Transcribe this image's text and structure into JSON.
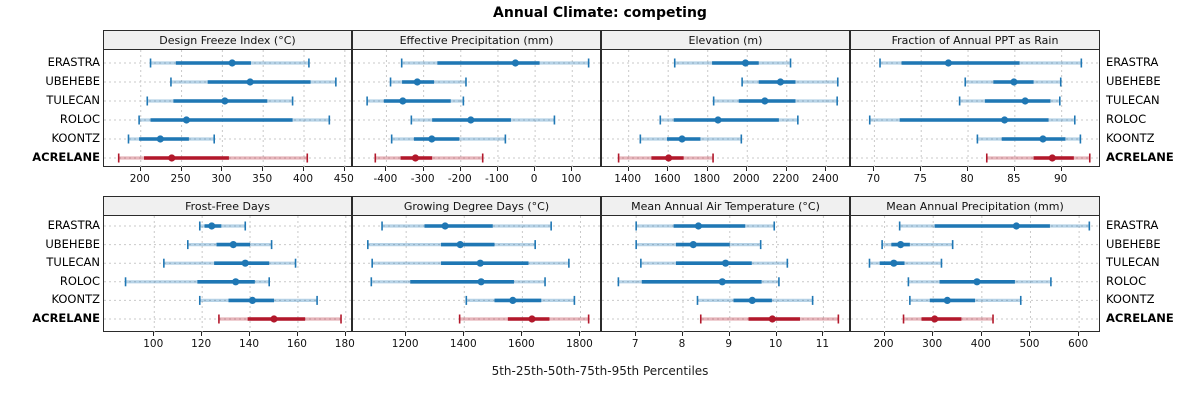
{
  "title": "Annual Climate: competing",
  "caption": "5th-25th-50th-75th-95th Percentiles",
  "sites": [
    "ERASTRA",
    "UBEHEBE",
    "TULECAN",
    "ROLOC",
    "KOONTZ",
    "ACRELANE"
  ],
  "highlight_site": "ACRELANE",
  "percentile_levels": [
    5,
    25,
    50,
    75,
    95
  ],
  "colors": {
    "series": "#1f77b4",
    "highlight": "#b2182b",
    "grid": "#c9c9c9",
    "strip_bg": "#f0f0f0",
    "border": "#2b2b2b"
  },
  "chart_data": {
    "type": "dot-whisker-percentile trellis",
    "layout_hint": "2 rows x 4 columns, shared site category axis, grid on, strip headers per panel",
    "rows": [
      "ERASTRA",
      "UBEHEBE",
      "TULECAN",
      "ROLOC",
      "KOONTZ",
      "ACRELANE"
    ],
    "value_order": "p5, p25, p50, p75, p95",
    "panels": [
      {
        "title": "Design Freeze Index (°C)",
        "xmin": 155,
        "xmax": 460,
        "ticks": [
          200,
          250,
          300,
          350,
          400,
          450
        ],
        "values": {
          "ERASTRA": [
            212,
            243,
            312,
            335,
            406
          ],
          "UBEHEBE": [
            237,
            282,
            334,
            408,
            439
          ],
          "TULECAN": [
            208,
            240,
            303,
            355,
            386
          ],
          "ROLOC": [
            198,
            212,
            256,
            386,
            431
          ],
          "KOONTZ": [
            185,
            198,
            224,
            259,
            290
          ],
          "ACRELANE": [
            173,
            204,
            238,
            308,
            404
          ]
        }
      },
      {
        "title": "Effective Precipitation (mm)",
        "xmin": -490,
        "xmax": 180,
        "ticks": [
          -400,
          -300,
          -200,
          -100,
          0,
          100
        ],
        "values": {
          "ERASTRA": [
            -359,
            -263,
            -53,
            12,
            144
          ],
          "UBEHEBE": [
            -389,
            -358,
            -317,
            -272,
            -186
          ],
          "TULECAN": [
            -452,
            -407,
            -356,
            -227,
            -193
          ],
          "ROLOC": [
            -333,
            -277,
            -173,
            -65,
            52
          ],
          "KOONTZ": [
            -386,
            -326,
            -278,
            -204,
            -80
          ],
          "ACRELANE": [
            -430,
            -362,
            -322,
            -277,
            -141
          ]
        }
      },
      {
        "title": "Elevation (m)",
        "xmin": 1265,
        "xmax": 2525,
        "ticks": [
          1400,
          1600,
          1800,
          2000,
          2200,
          2400
        ],
        "values": {
          "ERASTRA": [
            1633,
            1822,
            1991,
            2058,
            2219
          ],
          "UBEHEBE": [
            1974,
            2058,
            2168,
            2244,
            2458
          ],
          "TULECAN": [
            1830,
            1957,
            2089,
            2244,
            2455
          ],
          "ROLOC": [
            1560,
            1628,
            1852,
            2160,
            2256
          ],
          "KOONTZ": [
            1459,
            1594,
            1670,
            1763,
            1970
          ],
          "ACRELANE": [
            1349,
            1515,
            1602,
            1678,
            1827
          ]
        }
      },
      {
        "title": "Fraction of Annual PPT as Rain",
        "xmin": 67.5,
        "xmax": 94.2,
        "ticks": [
          70,
          75,
          80,
          85,
          90
        ],
        "values": {
          "ERASTRA": [
            70.6,
            72.9,
            77.9,
            85.5,
            92.1
          ],
          "UBEHEBE": [
            79.7,
            82.7,
            84.9,
            87.0,
            89.9
          ],
          "TULECAN": [
            79.1,
            81.8,
            86.1,
            88.8,
            89.8
          ],
          "ROLOC": [
            69.5,
            72.7,
            83.9,
            88.6,
            91.4
          ],
          "KOONTZ": [
            81.0,
            83.6,
            88.0,
            90.4,
            92.0
          ],
          "ACRELANE": [
            82.0,
            87.0,
            89.0,
            91.3,
            93.0
          ]
        }
      },
      {
        "title": "Frost-Free Days",
        "xmin": 79,
        "xmax": 183,
        "ticks": [
          100,
          120,
          140,
          160,
          180
        ],
        "values": {
          "ERASTRA": [
            119,
            121,
            124,
            128,
            138
          ],
          "UBEHEBE": [
            114,
            126,
            133,
            140,
            149
          ],
          "TULECAN": [
            104,
            125,
            138,
            148,
            159
          ],
          "ROLOC": [
            88,
            118,
            134,
            142,
            148
          ],
          "KOONTZ": [
            119,
            131,
            141,
            150,
            168
          ],
          "ACRELANE": [
            127,
            139,
            150,
            163,
            178
          ]
        }
      },
      {
        "title": "Growing Degree Days (°C)",
        "xmin": 1017,
        "xmax": 1874,
        "ticks": [
          1200,
          1400,
          1600,
          1800
        ],
        "values": {
          "ERASTRA": [
            1117,
            1263,
            1334,
            1498,
            1699
          ],
          "UBEHEBE": [
            1068,
            1320,
            1386,
            1504,
            1644
          ],
          "TULECAN": [
            1083,
            1320,
            1455,
            1621,
            1760
          ],
          "ROLOC": [
            1080,
            1214,
            1458,
            1571,
            1678
          ],
          "KOONTZ": [
            1407,
            1504,
            1567,
            1665,
            1779
          ],
          "ACRELANE": [
            1384,
            1550,
            1633,
            1693,
            1828
          ]
        }
      },
      {
        "title": "Mean Annual Air Temperature (°C)",
        "xmin": 6.27,
        "xmax": 11.59,
        "ticks": [
          7,
          8,
          9,
          10,
          11
        ],
        "values": {
          "ERASTRA": [
            7.0,
            7.8,
            8.33,
            9.33,
            9.95
          ],
          "UBEHEBE": [
            7.0,
            7.85,
            8.22,
            9.0,
            9.66
          ],
          "TULECAN": [
            7.1,
            7.85,
            8.91,
            9.47,
            10.23
          ],
          "ROLOC": [
            6.62,
            7.12,
            8.84,
            9.68,
            10.05
          ],
          "KOONTZ": [
            8.31,
            9.08,
            9.48,
            9.9,
            10.77
          ],
          "ACRELANE": [
            8.38,
            9.4,
            9.91,
            10.5,
            11.32
          ]
        }
      },
      {
        "title": "Mean Annual Precipitation (mm)",
        "xmin": 131,
        "xmax": 645,
        "ticks": [
          200,
          300,
          400,
          500,
          600
        ],
        "values": {
          "ERASTRA": [
            231,
            303,
            471,
            540,
            621
          ],
          "UBEHEBE": [
            195,
            214,
            233,
            252,
            340
          ],
          "TULECAN": [
            169,
            190,
            219,
            241,
            317
          ],
          "ROLOC": [
            249,
            313,
            390,
            468,
            542
          ],
          "KOONTZ": [
            252,
            293,
            329,
            386,
            480
          ],
          "ACRELANE": [
            239,
            276,
            303,
            358,
            423
          ]
        }
      }
    ]
  }
}
